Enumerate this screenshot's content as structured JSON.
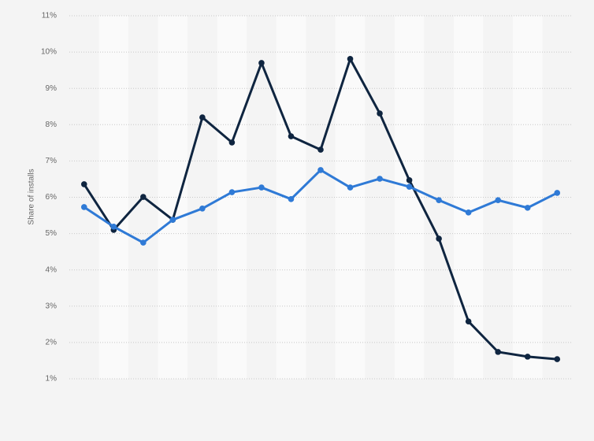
{
  "chart_data": {
    "type": "line",
    "y_label": "Share of installs",
    "categories": [
      null,
      null,
      null,
      null,
      null,
      null,
      null,
      null,
      null,
      null,
      null,
      null,
      null,
      null,
      null,
      null,
      null
    ],
    "series": [
      {
        "color": "#0f2540",
        "values": [
          6.36,
          5.1,
          6.01,
          5.38,
          8.2,
          7.51,
          9.7,
          7.68,
          7.31,
          9.81,
          8.31,
          6.47,
          4.86,
          2.58,
          1.74,
          1.61,
          1.54
        ]
      },
      {
        "color": "#2f7ad6",
        "values": [
          5.73,
          5.19,
          4.75,
          5.38,
          5.69,
          6.14,
          6.27,
          5.95,
          6.75,
          6.27,
          6.51,
          6.29,
          5.92,
          5.58,
          5.92,
          5.71,
          6.12
        ]
      }
    ],
    "ylim": [
      1,
      11
    ],
    "yticks": [
      {
        "value": 1,
        "label": "1%"
      },
      {
        "value": 2,
        "label": "2%"
      },
      {
        "value": 3,
        "label": "3%"
      },
      {
        "value": 4,
        "label": "4%"
      },
      {
        "value": 5,
        "label": "5%"
      },
      {
        "value": 6,
        "label": "6%"
      },
      {
        "value": 7,
        "label": "7%"
      },
      {
        "value": 8,
        "label": "8%"
      },
      {
        "value": 9,
        "label": "9%"
      },
      {
        "value": 10,
        "label": "10%"
      },
      {
        "value": 11,
        "label": "11%"
      }
    ],
    "grid": true
  }
}
